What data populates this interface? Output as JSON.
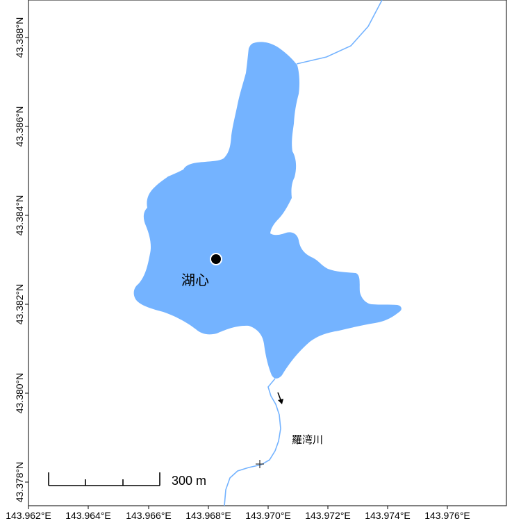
{
  "map": {
    "lake_color": "#74b3ff",
    "river_color": "#74b3ff",
    "frame_color": "#000000",
    "lake_center_label": "湖心",
    "river_label": "羅湾川",
    "scale_label": "300 m",
    "flow_arrow_icon": "arrow-down-right-icon",
    "marker_icon": "lake-center-dot-icon",
    "cross_icon": "cross-marker-icon",
    "x_ticks": [
      "143.962°E",
      "143.964°E",
      "143.966°E",
      "143.968°E",
      "143.970°E",
      "143.972°E",
      "143.974°E",
      "143.976°E"
    ],
    "y_ticks": [
      "43.378°N",
      "43.380°N",
      "43.382°N",
      "43.384°N",
      "43.386°N",
      "43.388°N"
    ]
  }
}
